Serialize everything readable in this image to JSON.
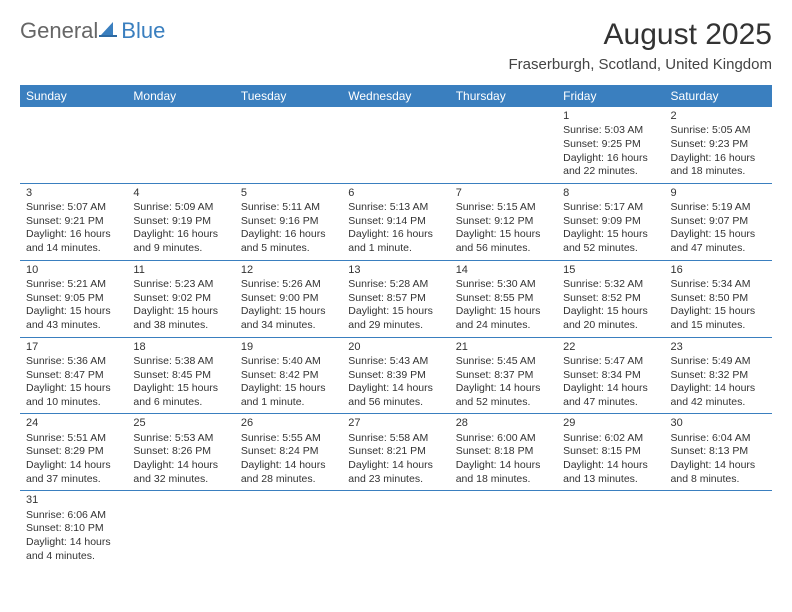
{
  "brand": {
    "word1": "General",
    "word2": "Blue"
  },
  "title": "August 2025",
  "location": "Fraserburgh, Scotland, United Kingdom",
  "colors": {
    "header_bg": "#3a7fbf",
    "header_fg": "#ffffff",
    "border": "#3a7fbf",
    "text": "#333333"
  },
  "weekdays": [
    "Sunday",
    "Monday",
    "Tuesday",
    "Wednesday",
    "Thursday",
    "Friday",
    "Saturday"
  ],
  "weeks": [
    [
      null,
      null,
      null,
      null,
      null,
      {
        "n": "1",
        "sr": "5:03 AM",
        "ss": "9:25 PM",
        "dl": "16 hours and 22 minutes."
      },
      {
        "n": "2",
        "sr": "5:05 AM",
        "ss": "9:23 PM",
        "dl": "16 hours and 18 minutes."
      }
    ],
    [
      {
        "n": "3",
        "sr": "5:07 AM",
        "ss": "9:21 PM",
        "dl": "16 hours and 14 minutes."
      },
      {
        "n": "4",
        "sr": "5:09 AM",
        "ss": "9:19 PM",
        "dl": "16 hours and 9 minutes."
      },
      {
        "n": "5",
        "sr": "5:11 AM",
        "ss": "9:16 PM",
        "dl": "16 hours and 5 minutes."
      },
      {
        "n": "6",
        "sr": "5:13 AM",
        "ss": "9:14 PM",
        "dl": "16 hours and 1 minute."
      },
      {
        "n": "7",
        "sr": "5:15 AM",
        "ss": "9:12 PM",
        "dl": "15 hours and 56 minutes."
      },
      {
        "n": "8",
        "sr": "5:17 AM",
        "ss": "9:09 PM",
        "dl": "15 hours and 52 minutes."
      },
      {
        "n": "9",
        "sr": "5:19 AM",
        "ss": "9:07 PM",
        "dl": "15 hours and 47 minutes."
      }
    ],
    [
      {
        "n": "10",
        "sr": "5:21 AM",
        "ss": "9:05 PM",
        "dl": "15 hours and 43 minutes."
      },
      {
        "n": "11",
        "sr": "5:23 AM",
        "ss": "9:02 PM",
        "dl": "15 hours and 38 minutes."
      },
      {
        "n": "12",
        "sr": "5:26 AM",
        "ss": "9:00 PM",
        "dl": "15 hours and 34 minutes."
      },
      {
        "n": "13",
        "sr": "5:28 AM",
        "ss": "8:57 PM",
        "dl": "15 hours and 29 minutes."
      },
      {
        "n": "14",
        "sr": "5:30 AM",
        "ss": "8:55 PM",
        "dl": "15 hours and 24 minutes."
      },
      {
        "n": "15",
        "sr": "5:32 AM",
        "ss": "8:52 PM",
        "dl": "15 hours and 20 minutes."
      },
      {
        "n": "16",
        "sr": "5:34 AM",
        "ss": "8:50 PM",
        "dl": "15 hours and 15 minutes."
      }
    ],
    [
      {
        "n": "17",
        "sr": "5:36 AM",
        "ss": "8:47 PM",
        "dl": "15 hours and 10 minutes."
      },
      {
        "n": "18",
        "sr": "5:38 AM",
        "ss": "8:45 PM",
        "dl": "15 hours and 6 minutes."
      },
      {
        "n": "19",
        "sr": "5:40 AM",
        "ss": "8:42 PM",
        "dl": "15 hours and 1 minute."
      },
      {
        "n": "20",
        "sr": "5:43 AM",
        "ss": "8:39 PM",
        "dl": "14 hours and 56 minutes."
      },
      {
        "n": "21",
        "sr": "5:45 AM",
        "ss": "8:37 PM",
        "dl": "14 hours and 52 minutes."
      },
      {
        "n": "22",
        "sr": "5:47 AM",
        "ss": "8:34 PM",
        "dl": "14 hours and 47 minutes."
      },
      {
        "n": "23",
        "sr": "5:49 AM",
        "ss": "8:32 PM",
        "dl": "14 hours and 42 minutes."
      }
    ],
    [
      {
        "n": "24",
        "sr": "5:51 AM",
        "ss": "8:29 PM",
        "dl": "14 hours and 37 minutes."
      },
      {
        "n": "25",
        "sr": "5:53 AM",
        "ss": "8:26 PM",
        "dl": "14 hours and 32 minutes."
      },
      {
        "n": "26",
        "sr": "5:55 AM",
        "ss": "8:24 PM",
        "dl": "14 hours and 28 minutes."
      },
      {
        "n": "27",
        "sr": "5:58 AM",
        "ss": "8:21 PM",
        "dl": "14 hours and 23 minutes."
      },
      {
        "n": "28",
        "sr": "6:00 AM",
        "ss": "8:18 PM",
        "dl": "14 hours and 18 minutes."
      },
      {
        "n": "29",
        "sr": "6:02 AM",
        "ss": "8:15 PM",
        "dl": "14 hours and 13 minutes."
      },
      {
        "n": "30",
        "sr": "6:04 AM",
        "ss": "8:13 PM",
        "dl": "14 hours and 8 minutes."
      }
    ],
    [
      {
        "n": "31",
        "sr": "6:06 AM",
        "ss": "8:10 PM",
        "dl": "14 hours and 4 minutes."
      },
      null,
      null,
      null,
      null,
      null,
      null
    ]
  ],
  "labels": {
    "sunrise": "Sunrise:",
    "sunset": "Sunset:",
    "daylight": "Daylight:"
  }
}
